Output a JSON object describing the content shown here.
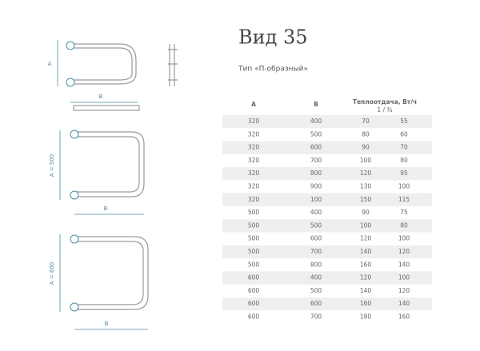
{
  "header": {
    "title": "Вид 35",
    "subtitle": "Тип «П-образный»"
  },
  "drawings": [
    {
      "a_label": "A",
      "b_label": "B"
    },
    {
      "a_label": "A = 500",
      "b_label": "B"
    },
    {
      "a_label": "A = 600",
      "b_label": "B"
    }
  ],
  "table": {
    "columns": [
      "A",
      "B",
      "Теплоотдача, Вт/ч"
    ],
    "subheader": "1 / ¾",
    "rows": [
      [
        320,
        400,
        70,
        55
      ],
      [
        320,
        500,
        80,
        60
      ],
      [
        320,
        600,
        90,
        70
      ],
      [
        320,
        700,
        100,
        80
      ],
      [
        320,
        800,
        120,
        95
      ],
      [
        320,
        900,
        130,
        100
      ],
      [
        320,
        100,
        150,
        115
      ],
      [
        500,
        400,
        90,
        75
      ],
      [
        500,
        500,
        100,
        80
      ],
      [
        500,
        600,
        120,
        100
      ],
      [
        500,
        700,
        140,
        120
      ],
      [
        500,
        800,
        160,
        140
      ],
      [
        600,
        400,
        120,
        100
      ],
      [
        600,
        500,
        140,
        120
      ],
      [
        600,
        600,
        160,
        140
      ],
      [
        600,
        700,
        180,
        160
      ]
    ]
  }
}
